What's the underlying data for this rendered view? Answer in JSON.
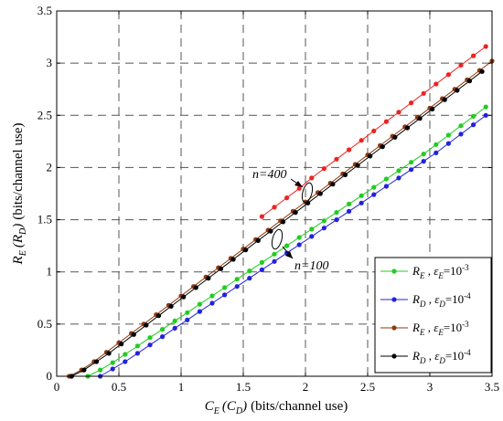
{
  "chart_data": {
    "type": "line",
    "title": "",
    "xlabel": {
      "main": "C",
      "sub": "E",
      "paren_main": "C",
      "paren_sub": "D",
      "unit": "(bits/channel use)"
    },
    "ylabel": {
      "main": "R",
      "sub": "E",
      "paren_main": "R",
      "paren_sub": "D",
      "unit": "(bits/channel use)"
    },
    "xlim": [
      0,
      3.5
    ],
    "ylim": [
      0,
      3.5
    ],
    "xticks": [
      "0",
      "0.5",
      "1",
      "1.5",
      "2",
      "2.5",
      "3",
      "3.5"
    ],
    "yticks": [
      "0",
      "0.5",
      "1",
      "1.5",
      "2",
      "2.5",
      "3",
      "3.5"
    ],
    "grid": true,
    "legend_position": "bottom-right",
    "annotations": [
      {
        "text": "n=400",
        "x": 1.95,
        "y": 1.76
      },
      {
        "text": "n=100",
        "x": 1.77,
        "y": 1.28
      }
    ],
    "series": [
      {
        "legend_main": "R",
        "legend_sub": "E",
        "eps_main": "ε",
        "eps_sub": "E",
        "eps_val": "=10",
        "eps_exp": "-3",
        "color": "#22cc22",
        "x": [
          0.25,
          0.35,
          0.45,
          0.55,
          0.65,
          0.75,
          0.85,
          0.95,
          1.05,
          1.15,
          1.25,
          1.35,
          1.45,
          1.55,
          1.65,
          1.75,
          1.85,
          1.95,
          2.05,
          2.15,
          2.25,
          2.35,
          2.45,
          2.55,
          2.65,
          2.75,
          2.85,
          2.95,
          3.05,
          3.15,
          3.25,
          3.35,
          3.45
        ],
        "y": [
          0.0,
          0.06,
          0.13,
          0.21,
          0.29,
          0.37,
          0.45,
          0.53,
          0.61,
          0.69,
          0.77,
          0.85,
          0.93,
          1.01,
          1.09,
          1.17,
          1.25,
          1.33,
          1.41,
          1.49,
          1.57,
          1.65,
          1.73,
          1.81,
          1.89,
          1.97,
          2.05,
          2.13,
          2.22,
          2.31,
          2.4,
          2.49,
          2.58
        ]
      },
      {
        "legend_main": "R",
        "legend_sub": "D",
        "eps_main": "ε",
        "eps_sub": "D",
        "eps_val": "=10",
        "eps_exp": "-4",
        "color": "#2222dd",
        "x": [
          0.35,
          0.45,
          0.55,
          0.65,
          0.75,
          0.85,
          0.95,
          1.05,
          1.15,
          1.25,
          1.35,
          1.45,
          1.55,
          1.65,
          1.75,
          1.85,
          1.95,
          2.05,
          2.15,
          2.25,
          2.35,
          2.45,
          2.55,
          2.65,
          2.75,
          2.85,
          2.95,
          3.05,
          3.15,
          3.25,
          3.35,
          3.45
        ],
        "y": [
          0.0,
          0.07,
          0.14,
          0.22,
          0.3,
          0.38,
          0.46,
          0.54,
          0.62,
          0.7,
          0.78,
          0.86,
          0.94,
          1.02,
          1.1,
          1.18,
          1.26,
          1.34,
          1.42,
          1.5,
          1.58,
          1.66,
          1.74,
          1.82,
          1.9,
          1.98,
          2.06,
          2.14,
          2.23,
          2.32,
          2.41,
          2.5
        ]
      },
      {
        "legend_main": "R",
        "legend_sub": "E",
        "eps_main": "ε",
        "eps_sub": "E",
        "eps_val": "=10",
        "eps_exp": "-3",
        "color": "#8b3a0f",
        "x": [
          0.1,
          0.2,
          0.3,
          0.4,
          0.5,
          0.6,
          0.7,
          0.8,
          0.9,
          1.0,
          1.1,
          1.2,
          1.3,
          1.4,
          1.5,
          1.6,
          1.7,
          1.8,
          1.9,
          2.0,
          2.1,
          2.2,
          2.3,
          2.4,
          2.5,
          2.6,
          2.7,
          2.8,
          2.9,
          3.0,
          3.1,
          3.2,
          3.3,
          3.4,
          3.5
        ],
        "y": [
          0.0,
          0.06,
          0.14,
          0.23,
          0.32,
          0.41,
          0.5,
          0.59,
          0.68,
          0.77,
          0.86,
          0.95,
          1.04,
          1.13,
          1.22,
          1.31,
          1.4,
          1.49,
          1.58,
          1.67,
          1.76,
          1.85,
          1.94,
          2.03,
          2.12,
          2.21,
          2.3,
          2.39,
          2.48,
          2.57,
          2.66,
          2.75,
          2.84,
          2.93,
          3.02
        ]
      },
      {
        "legend_main": "R",
        "legend_sub": "D",
        "eps_main": "ε",
        "eps_sub": "D",
        "eps_val": "=10",
        "eps_exp": "-4",
        "color": "#000000",
        "x": [
          0.12,
          0.22,
          0.32,
          0.42,
          0.52,
          0.62,
          0.72,
          0.82,
          0.92,
          1.02,
          1.12,
          1.22,
          1.32,
          1.42,
          1.52,
          1.62,
          1.72,
          1.82,
          1.92,
          2.02,
          2.12,
          2.22,
          2.32,
          2.42,
          2.52,
          2.62,
          2.72,
          2.82,
          2.92,
          3.02,
          3.12,
          3.22,
          3.32,
          3.42
        ],
        "y": [
          0.0,
          0.06,
          0.14,
          0.22,
          0.31,
          0.4,
          0.49,
          0.58,
          0.67,
          0.76,
          0.85,
          0.94,
          1.03,
          1.12,
          1.21,
          1.3,
          1.39,
          1.48,
          1.57,
          1.66,
          1.75,
          1.84,
          1.93,
          2.02,
          2.11,
          2.2,
          2.29,
          2.38,
          2.47,
          2.56,
          2.65,
          2.74,
          2.83,
          2.92
        ]
      },
      {
        "legend_main": "",
        "color": "#ee2222",
        "x": [
          1.65,
          1.75,
          1.85,
          1.95,
          2.05,
          2.15,
          2.25,
          2.35,
          2.45,
          2.55,
          2.65,
          2.75,
          2.85,
          2.95,
          3.05,
          3.15,
          3.25,
          3.35,
          3.45
        ],
        "y": [
          1.53,
          1.62,
          1.71,
          1.8,
          1.9,
          1.99,
          2.08,
          2.17,
          2.26,
          2.35,
          2.44,
          2.53,
          2.62,
          2.71,
          2.8,
          2.89,
          2.98,
          3.07,
          3.16
        ]
      }
    ]
  }
}
